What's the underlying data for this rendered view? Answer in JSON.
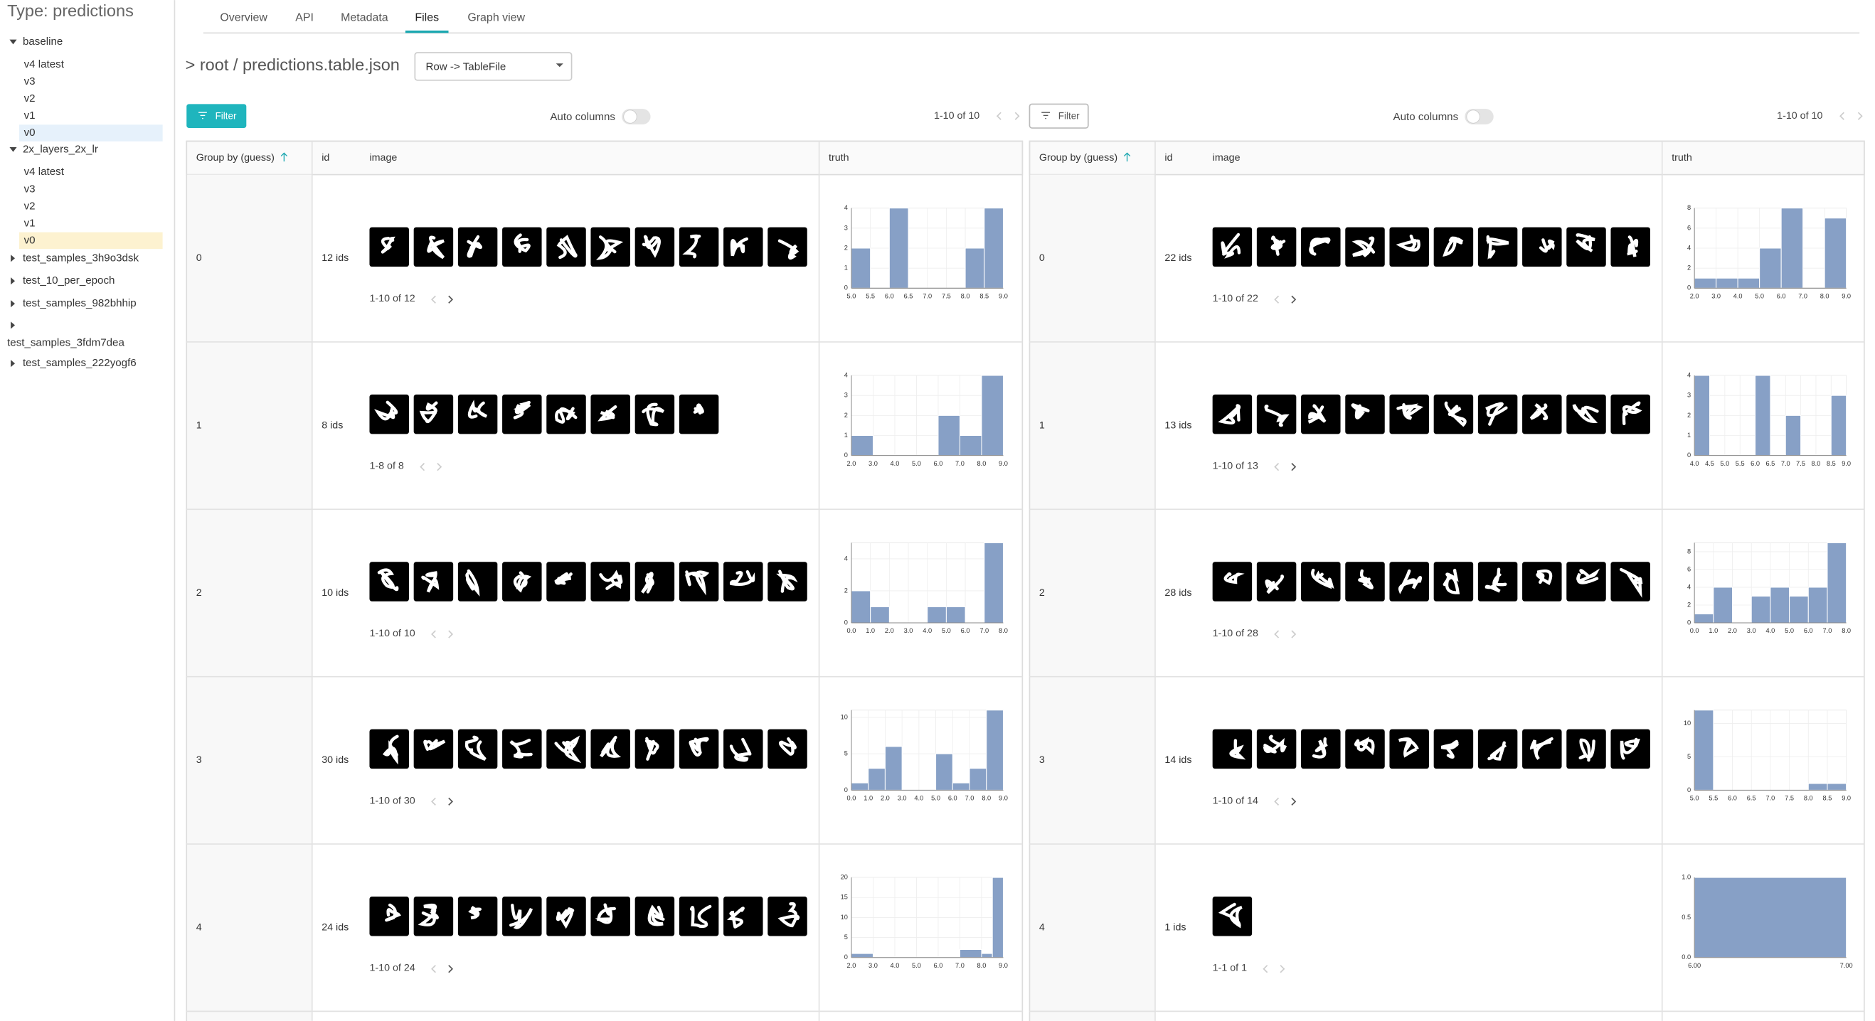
{
  "sidebar": {
    "title": "Type: predictions",
    "groups": [
      {
        "name": "baseline",
        "versions": [
          "v4 latest",
          "v3",
          "v2",
          "v1",
          "v0"
        ]
      },
      {
        "name": "2x_layers_2x_lr",
        "versions": [
          "v4 latest",
          "v3",
          "v2",
          "v1",
          "v0"
        ]
      },
      {
        "name": "test_samples_3h9o3dsk"
      },
      {
        "name": "test_10_per_epoch"
      },
      {
        "name": "test_samples_982bhhip"
      },
      {
        "name": "test_samples_3fdm7dea"
      },
      {
        "name": "test_samples_222yogf6"
      }
    ]
  },
  "tabs": [
    "Overview",
    "API",
    "Metadata",
    "Files",
    "Graph view"
  ],
  "breadcrumb": "> root / predictions.table.json",
  "dropdown": "Row -> TableFile",
  "panels": [
    {
      "filter": "Filter",
      "auto_columns": "Auto columns",
      "pager": "1-10 of 10",
      "columns": [
        "Group by (guess)",
        "id",
        "image",
        "truth"
      ],
      "rows": [
        {
          "group": 0,
          "ids": "12 ids",
          "pager": "1-10 of 12",
          "truth": {
            "type": "histogram",
            "xlim": [
              5,
              9
            ],
            "xticks": [
              {
                "value": 5,
                "label": "5.0"
              },
              {
                "value": 5.5,
                "label": "5.5"
              },
              {
                "value": 6,
                "label": "6.0"
              },
              {
                "value": 6.5,
                "label": "6.5"
              },
              {
                "value": 7,
                "label": "7.0"
              },
              {
                "value": 7.5,
                "label": "7.5"
              },
              {
                "value": 8,
                "label": "8.0"
              },
              {
                "value": 8.5,
                "label": "8.5"
              },
              {
                "value": 9,
                "label": "9.0"
              }
            ],
            "ylim": [
              0,
              4
            ],
            "yticks": [
              0,
              1,
              2,
              3,
              4
            ],
            "bars": [
              {
                "from": 5,
                "to": 5.5,
                "count": 2
              },
              {
                "from": 6,
                "to": 6.5,
                "count": 4
              },
              {
                "from": 8,
                "to": 8.5,
                "count": 2
              },
              {
                "from": 8.5,
                "to": 9,
                "count": 4
              }
            ]
          }
        },
        {
          "group": 1,
          "ids": "8 ids",
          "pager": "1-8 of 8",
          "truth": {
            "type": "histogram",
            "xlim": [
              2,
              9
            ],
            "xticks": [
              {
                "value": 2,
                "label": "2.0"
              },
              {
                "value": 3,
                "label": "3.0"
              },
              {
                "value": 4,
                "label": "4.0"
              },
              {
                "value": 5,
                "label": "5.0"
              },
              {
                "value": 6,
                "label": "6.0"
              },
              {
                "value": 7,
                "label": "7.0"
              },
              {
                "value": 8,
                "label": "8.0"
              },
              {
                "value": 9,
                "label": "9.0"
              }
            ],
            "ylim": [
              0,
              4
            ],
            "yticks": [
              0,
              1,
              2,
              3,
              4
            ],
            "bars": [
              {
                "from": 2,
                "to": 3,
                "count": 1
              },
              {
                "from": 6,
                "to": 7,
                "count": 2
              },
              {
                "from": 7,
                "to": 8,
                "count": 1
              },
              {
                "from": 8,
                "to": 9,
                "count": 4
              }
            ]
          }
        },
        {
          "group": 2,
          "ids": "10 ids",
          "pager": "1-10 of 10",
          "truth": {
            "type": "histogram",
            "xlim": [
              0,
              8
            ],
            "xticks": [
              {
                "value": 0,
                "label": "0.0"
              },
              {
                "value": 1,
                "label": "1.0"
              },
              {
                "value": 2,
                "label": "2.0"
              },
              {
                "value": 3,
                "label": "3.0"
              },
              {
                "value": 4,
                "label": "4.0"
              },
              {
                "value": 5,
                "label": "5.0"
              },
              {
                "value": 6,
                "label": "6.0"
              },
              {
                "value": 7,
                "label": "7.0"
              },
              {
                "value": 8,
                "label": "8.0"
              }
            ],
            "ylim": [
              0,
              5
            ],
            "yticks": [
              0,
              2,
              4
            ],
            "bars": [
              {
                "from": 0,
                "to": 1,
                "count": 2
              },
              {
                "from": 1,
                "to": 2,
                "count": 1
              },
              {
                "from": 4,
                "to": 5,
                "count": 1
              },
              {
                "from": 5,
                "to": 6,
                "count": 1
              },
              {
                "from": 7,
                "to": 8,
                "count": 5
              }
            ]
          }
        },
        {
          "group": 3,
          "ids": "30 ids",
          "pager": "1-10 of 30",
          "truth": {
            "type": "histogram",
            "xlim": [
              0,
              9
            ],
            "xticks": [
              {
                "value": 0,
                "label": "0.0"
              },
              {
                "value": 1,
                "label": "1.0"
              },
              {
                "value": 2,
                "label": "2.0"
              },
              {
                "value": 3,
                "label": "3.0"
              },
              {
                "value": 4,
                "label": "4.0"
              },
              {
                "value": 5,
                "label": "5.0"
              },
              {
                "value": 6,
                "label": "6.0"
              },
              {
                "value": 7,
                "label": "7.0"
              },
              {
                "value": 8,
                "label": "8.0"
              },
              {
                "value": 9,
                "label": "9.0"
              }
            ],
            "ylim": [
              0,
              11
            ],
            "yticks": [
              0,
              5,
              10
            ],
            "bars": [
              {
                "from": 0,
                "to": 1,
                "count": 1
              },
              {
                "from": 1,
                "to": 2,
                "count": 3
              },
              {
                "from": 2,
                "to": 3,
                "count": 6
              },
              {
                "from": 5,
                "to": 6,
                "count": 5
              },
              {
                "from": 6,
                "to": 7,
                "count": 1
              },
              {
                "from": 7,
                "to": 8,
                "count": 3
              },
              {
                "from": 8,
                "to": 9,
                "count": 11
              }
            ]
          }
        },
        {
          "group": 4,
          "ids": "24 ids",
          "pager": "1-10 of 24",
          "truth": {
            "type": "histogram",
            "xlim": [
              2,
              9
            ],
            "xticks": [
              {
                "value": 2,
                "label": "2.0"
              },
              {
                "value": 3,
                "label": "3.0"
              },
              {
                "value": 4,
                "label": "4.0"
              },
              {
                "value": 5,
                "label": "5.0"
              },
              {
                "value": 6,
                "label": "6.0"
              },
              {
                "value": 7,
                "label": "7.0"
              },
              {
                "value": 8,
                "label": "8.0"
              },
              {
                "value": 9,
                "label": "9.0"
              }
            ],
            "ylim": [
              0,
              20
            ],
            "yticks": [
              0,
              5,
              10,
              15,
              20
            ],
            "bars": [
              {
                "from": 2,
                "to": 3,
                "count": 1
              },
              {
                "from": 7,
                "to": 8,
                "count": 2
              },
              {
                "from": 8,
                "to": 8.5,
                "count": 1
              },
              {
                "from": 8.5,
                "to": 9,
                "count": 20
              }
            ]
          }
        }
      ]
    },
    {
      "filter": "Filter",
      "auto_columns": "Auto columns",
      "pager": "1-10 of 10",
      "columns": [
        "Group by (guess)",
        "id",
        "image",
        "truth"
      ],
      "rows": [
        {
          "group": 0,
          "ids": "22 ids",
          "pager": "1-10 of 22",
          "truth": {
            "type": "histogram",
            "xlim": [
              2,
              9
            ],
            "xticks": [
              {
                "value": 2,
                "label": "2.0"
              },
              {
                "value": 3,
                "label": "3.0"
              },
              {
                "value": 4,
                "label": "4.0"
              },
              {
                "value": 5,
                "label": "5.0"
              },
              {
                "value": 6,
                "label": "6.0"
              },
              {
                "value": 7,
                "label": "7.0"
              },
              {
                "value": 8,
                "label": "8.0"
              },
              {
                "value": 9,
                "label": "9.0"
              }
            ],
            "ylim": [
              0,
              8
            ],
            "yticks": [
              0,
              2,
              4,
              6,
              8
            ],
            "bars": [
              {
                "from": 2,
                "to": 3,
                "count": 1
              },
              {
                "from": 3,
                "to": 4,
                "count": 1
              },
              {
                "from": 4,
                "to": 5,
                "count": 1
              },
              {
                "from": 5,
                "to": 6,
                "count": 4
              },
              {
                "from": 6,
                "to": 7,
                "count": 8
              },
              {
                "from": 8,
                "to": 9,
                "count": 7
              }
            ]
          }
        },
        {
          "group": 1,
          "ids": "13 ids",
          "pager": "1-10 of 13",
          "truth": {
            "type": "histogram",
            "xlim": [
              4,
              9
            ],
            "xticks": [
              {
                "value": 4,
                "label": "4.0"
              },
              {
                "value": 4.5,
                "label": "4.5"
              },
              {
                "value": 5,
                "label": "5.0"
              },
              {
                "value": 5.5,
                "label": "5.5"
              },
              {
                "value": 6,
                "label": "6.0"
              },
              {
                "value": 6.5,
                "label": "6.5"
              },
              {
                "value": 7,
                "label": "7.0"
              },
              {
                "value": 7.5,
                "label": "7.5"
              },
              {
                "value": 8,
                "label": "8.0"
              },
              {
                "value": 8.5,
                "label": "8.5"
              },
              {
                "value": 9,
                "label": "9.0"
              }
            ],
            "ylim": [
              0,
              4
            ],
            "yticks": [
              0,
              1,
              2,
              3,
              4
            ],
            "bars": [
              {
                "from": 4,
                "to": 4.5,
                "count": 4
              },
              {
                "from": 6,
                "to": 6.5,
                "count": 4
              },
              {
                "from": 7,
                "to": 7.5,
                "count": 2
              },
              {
                "from": 8.5,
                "to": 9,
                "count": 3
              }
            ]
          }
        },
        {
          "group": 2,
          "ids": "28 ids",
          "pager": "1-10 of 28",
          "truth": {
            "type": "histogram",
            "xlim": [
              0,
              8
            ],
            "xticks": [
              {
                "value": 0,
                "label": "0.0"
              },
              {
                "value": 1,
                "label": "1.0"
              },
              {
                "value": 2,
                "label": "2.0"
              },
              {
                "value": 3,
                "label": "3.0"
              },
              {
                "value": 4,
                "label": "4.0"
              },
              {
                "value": 5,
                "label": "5.0"
              },
              {
                "value": 6,
                "label": "6.0"
              },
              {
                "value": 7,
                "label": "7.0"
              },
              {
                "value": 8,
                "label": "8.0"
              }
            ],
            "ylim": [
              0,
              9
            ],
            "yticks": [
              0,
              2,
              4,
              6,
              8
            ],
            "bars": [
              {
                "from": 0,
                "to": 1,
                "count": 1
              },
              {
                "from": 1,
                "to": 2,
                "count": 4
              },
              {
                "from": 3,
                "to": 4,
                "count": 3
              },
              {
                "from": 4,
                "to": 5,
                "count": 4
              },
              {
                "from": 5,
                "to": 6,
                "count": 3
              },
              {
                "from": 6,
                "to": 7,
                "count": 4
              },
              {
                "from": 7,
                "to": 8,
                "count": 9
              }
            ]
          }
        },
        {
          "group": 3,
          "ids": "14 ids",
          "pager": "1-10 of 14",
          "truth": {
            "type": "histogram",
            "xlim": [
              5,
              9
            ],
            "xticks": [
              {
                "value": 5,
                "label": "5.0"
              },
              {
                "value": 5.5,
                "label": "5.5"
              },
              {
                "value": 6,
                "label": "6.0"
              },
              {
                "value": 6.5,
                "label": "6.5"
              },
              {
                "value": 7,
                "label": "7.0"
              },
              {
                "value": 7.5,
                "label": "7.5"
              },
              {
                "value": 8,
                "label": "8.0"
              },
              {
                "value": 8.5,
                "label": "8.5"
              },
              {
                "value": 9,
                "label": "9.0"
              }
            ],
            "ylim": [
              0,
              12
            ],
            "yticks": [
              0,
              5,
              10
            ],
            "bars": [
              {
                "from": 5,
                "to": 5.5,
                "count": 12
              },
              {
                "from": 8,
                "to": 8.5,
                "count": 1
              },
              {
                "from": 8.5,
                "to": 9,
                "count": 1
              }
            ]
          }
        },
        {
          "group": 4,
          "ids": "1 ids",
          "pager": "1-1 of 1",
          "truth": {
            "type": "histogram",
            "xlim": [
              6,
              7
            ],
            "xticks": [
              {
                "value": 6,
                "label": "6.00"
              },
              {
                "value": 7,
                "label": "7.00"
              }
            ],
            "ylim": [
              0,
              1
            ],
            "yticks": [
              {
                "value": 0,
                "label": "0.0"
              },
              {
                "value": 0.5,
                "label": "0.5"
              },
              {
                "value": 1,
                "label": "1.0"
              }
            ],
            "bars": [
              {
                "from": 6,
                "to": 7,
                "count": 1
              }
            ]
          }
        }
      ]
    }
  ]
}
